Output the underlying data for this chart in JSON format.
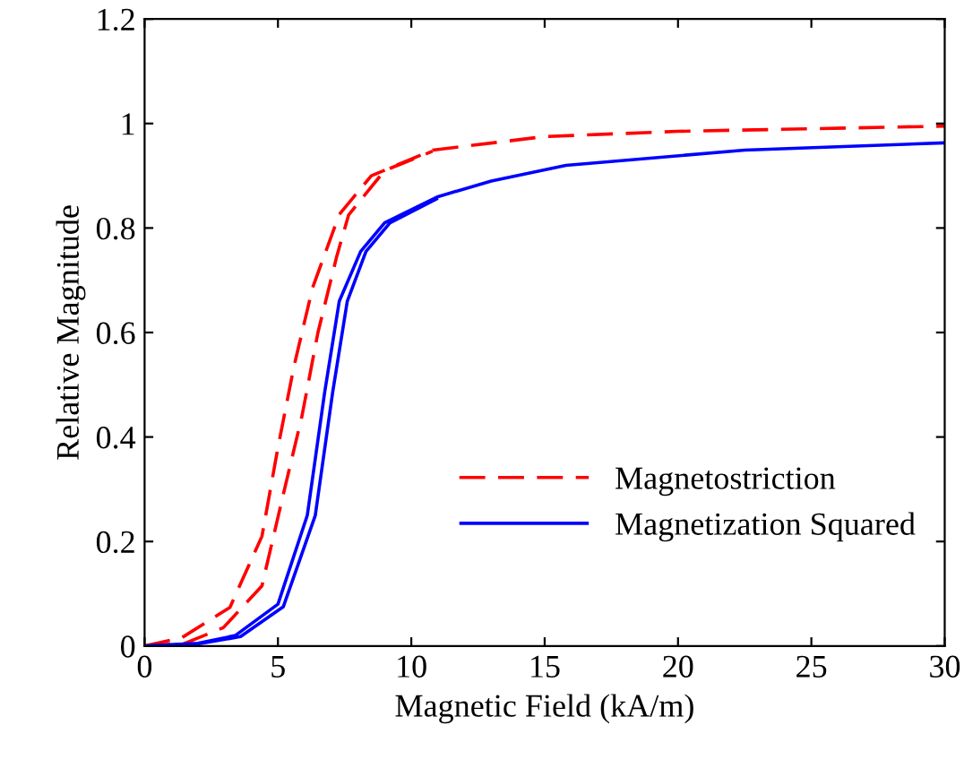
{
  "chart_data": {
    "type": "line",
    "xlabel": "Magnetic Field (kA/m)",
    "ylabel": "Relative Magnitude",
    "xlim": [
      0,
      30
    ],
    "ylim": [
      0,
      1.2
    ],
    "xticks": [
      0,
      5,
      10,
      15,
      20,
      25,
      30
    ],
    "yticks": [
      0,
      0.2,
      0.4,
      0.6,
      0.8,
      1,
      1.2
    ],
    "grid": false,
    "legend": "lower right",
    "marker": "none",
    "series": [
      {
        "name": "Magnetostriction",
        "color": "#ff0000",
        "line_style": "dashed",
        "x": [
          0,
          1.4,
          3.2,
          4.4,
          5,
          5.6,
          6.3,
          7.3,
          8.5,
          10.8,
          15,
          20,
          25,
          30
        ],
        "values": [
          0,
          0.016,
          0.074,
          0.21,
          0.38,
          0.535,
          0.686,
          0.826,
          0.9,
          0.949,
          0.975,
          0.985,
          0.99,
          0.995
        ]
      },
      {
        "color": "#ff0000",
        "line_style": "dashed",
        "x": [
          0,
          1.5,
          2.95,
          4.4,
          5.2,
          5.9,
          6.5,
          7.2,
          7.65,
          9,
          10.8
        ],
        "values": [
          0,
          0.005,
          0.035,
          0.115,
          0.29,
          0.44,
          0.6,
          0.745,
          0.825,
          0.91,
          0.947
        ]
      },
      {
        "name": "Magnetization Squared",
        "color": "#0000ff",
        "line_style": "solid",
        "x": [
          0,
          2,
          3.4,
          5,
          6.1,
          6.75,
          7.3,
          8.1,
          9,
          11,
          13,
          15.8,
          22.5,
          30
        ],
        "values": [
          0,
          0.005,
          0.02,
          0.08,
          0.25,
          0.485,
          0.66,
          0.755,
          0.81,
          0.86,
          0.89,
          0.92,
          0.949,
          0.963
        ]
      },
      {
        "color": "#0000ff",
        "line_style": "solid",
        "x": [
          0,
          2,
          3.6,
          5.2,
          6.4,
          7.05,
          7.6,
          8.3,
          9.2,
          11
        ],
        "values": [
          0,
          0.004,
          0.018,
          0.075,
          0.25,
          0.485,
          0.66,
          0.755,
          0.81,
          0.857
        ]
      }
    ]
  }
}
